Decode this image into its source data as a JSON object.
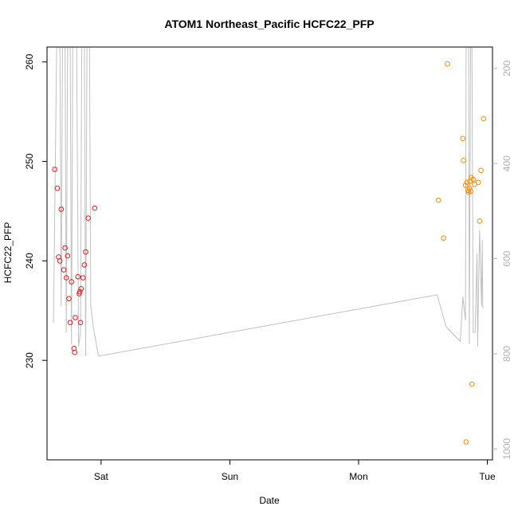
{
  "chart_data": {
    "type": "scatter",
    "title": "ATOM1 Northeast_Pacific HCFC22_PFP",
    "xlabel": "Date",
    "ylabel": "HCFC22_PFP",
    "x_unit": "days",
    "x_ticks": [
      {
        "label": "Sat",
        "value": 1.0
      },
      {
        "label": "Sun",
        "value": 2.0
      },
      {
        "label": "Mon",
        "value": 3.0
      },
      {
        "label": "Tue",
        "value": 4.0
      }
    ],
    "xlim": [
      0.58,
      4.04
    ],
    "ylim": [
      220.0,
      261.5
    ],
    "y_ticks": [
      230,
      240,
      250,
      260
    ],
    "right_axis": {
      "ticks": [
        200,
        400,
        600,
        800,
        1000
      ],
      "ylim": [
        1023.0,
        155.0
      ],
      "color": "#b0b0b0"
    },
    "colors": {
      "series_1": "#e41a1c",
      "series_2": "#ff8c00",
      "profile_line": "#c0c0c0"
    },
    "series": [
      {
        "color": "#e41a1c",
        "points": [
          [
            0.64,
            249.2
          ],
          [
            0.66,
            247.3
          ],
          [
            0.67,
            240.4
          ],
          [
            0.68,
            240.0
          ],
          [
            0.69,
            245.2
          ],
          [
            0.71,
            239.1
          ],
          [
            0.72,
            241.3
          ],
          [
            0.73,
            238.3
          ],
          [
            0.74,
            240.5
          ],
          [
            0.75,
            236.2
          ],
          [
            0.76,
            233.8
          ],
          [
            0.77,
            237.9
          ],
          [
            0.79,
            231.2
          ],
          [
            0.795,
            230.8
          ],
          [
            0.8,
            234.3
          ],
          [
            0.82,
            238.4
          ],
          [
            0.83,
            236.7
          ],
          [
            0.835,
            236.9
          ],
          [
            0.84,
            233.8
          ],
          [
            0.845,
            237.2
          ],
          [
            0.86,
            238.3
          ],
          [
            0.87,
            239.6
          ],
          [
            0.88,
            240.9
          ],
          [
            0.9,
            244.3
          ],
          [
            0.95,
            245.3
          ]
        ]
      },
      {
        "color": "#ff8c00",
        "points": [
          [
            3.62,
            246.1
          ],
          [
            3.66,
            242.3
          ],
          [
            3.69,
            259.8
          ],
          [
            3.81,
            252.3
          ],
          [
            3.815,
            250.1
          ],
          [
            3.83,
            247.6
          ],
          [
            3.835,
            221.8
          ],
          [
            3.84,
            247.9
          ],
          [
            3.85,
            247.1
          ],
          [
            3.855,
            246.9
          ],
          [
            3.86,
            247.3
          ],
          [
            3.865,
            248.0
          ],
          [
            3.87,
            247.0
          ],
          [
            3.875,
            248.4
          ],
          [
            3.88,
            227.6
          ],
          [
            3.89,
            248.2
          ],
          [
            3.9,
            247.7
          ],
          [
            3.93,
            247.9
          ],
          [
            3.94,
            244.0
          ],
          [
            3.95,
            249.1
          ],
          [
            3.97,
            254.3
          ]
        ]
      }
    ],
    "profile": [
      [
        0.63,
        735
      ],
      [
        0.655,
        155
      ],
      [
        0.68,
        155
      ],
      [
        0.69,
        700
      ],
      [
        0.7,
        155
      ],
      [
        0.72,
        155
      ],
      [
        0.73,
        755
      ],
      [
        0.74,
        155
      ],
      [
        0.76,
        155
      ],
      [
        0.77,
        780
      ],
      [
        0.78,
        155
      ],
      [
        0.81,
        155
      ],
      [
        0.825,
        785
      ],
      [
        0.84,
        755
      ],
      [
        0.85,
        155
      ],
      [
        0.87,
        155
      ],
      [
        0.88,
        805
      ],
      [
        0.89,
        155
      ],
      [
        0.91,
        155
      ],
      [
        0.92,
        700
      ],
      [
        0.94,
        745
      ],
      [
        0.98,
        805
      ],
      [
        3.61,
        676
      ],
      [
        3.68,
        743
      ],
      [
        3.79,
        774
      ],
      [
        3.81,
        680
      ],
      [
        3.83,
        730
      ],
      [
        3.835,
        155
      ],
      [
        3.855,
        155
      ],
      [
        3.86,
        780
      ],
      [
        3.87,
        155
      ],
      [
        3.88,
        155
      ],
      [
        3.89,
        755
      ],
      [
        3.905,
        755
      ],
      [
        3.92,
        590
      ],
      [
        3.925,
        785
      ],
      [
        3.94,
        540
      ],
      [
        3.955,
        700
      ],
      [
        3.96,
        560
      ],
      [
        3.965,
        705
      ]
    ]
  }
}
